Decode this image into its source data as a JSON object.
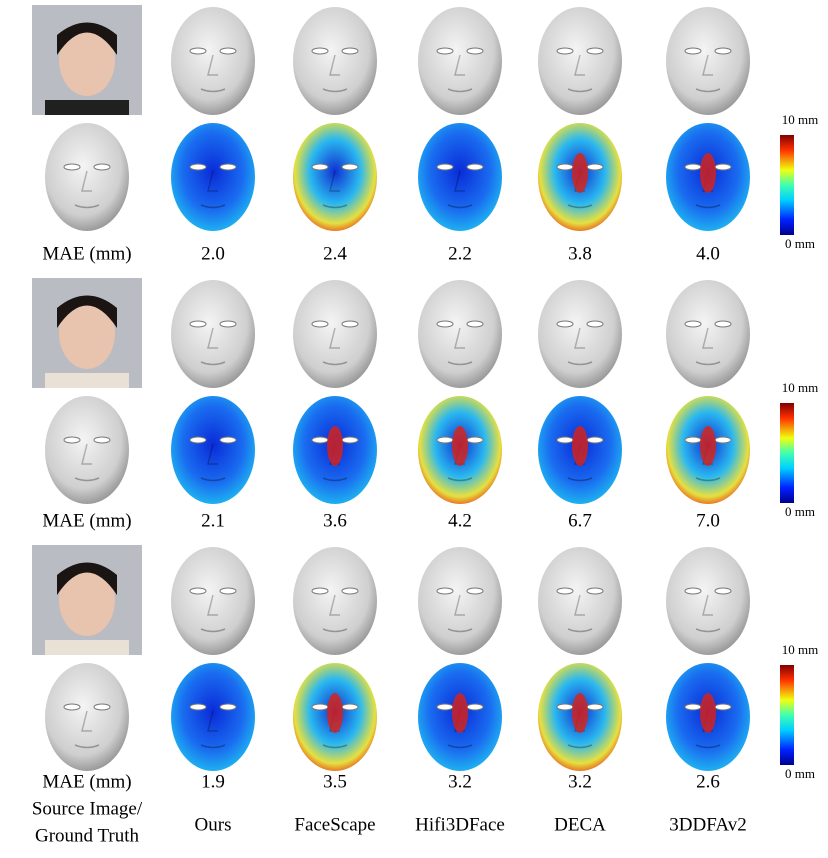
{
  "blocks": [
    {
      "mae_label": "MAE (mm)",
      "mae": [
        "2.0",
        "2.4",
        "2.2",
        "3.8",
        "4.0"
      ],
      "colorbar": {
        "max": "10 mm",
        "min": "0 mm"
      }
    },
    {
      "mae_label": "MAE (mm)",
      "mae": [
        "2.1",
        "3.6",
        "4.2",
        "6.7",
        "7.0"
      ],
      "colorbar": {
        "max": "10 mm",
        "min": "0 mm"
      }
    },
    {
      "mae_label": "MAE (mm)",
      "mae": [
        "1.9",
        "3.5",
        "3.2",
        "3.2",
        "2.6"
      ],
      "colorbar": {
        "max": "10 mm",
        "min": "0 mm"
      }
    }
  ],
  "footer": {
    "source": [
      "Source Image/",
      "Ground Truth"
    ],
    "methods": [
      "Ours",
      "FaceScape",
      "Hifi3DFace",
      "DECA",
      "3DDFAv2"
    ]
  }
}
